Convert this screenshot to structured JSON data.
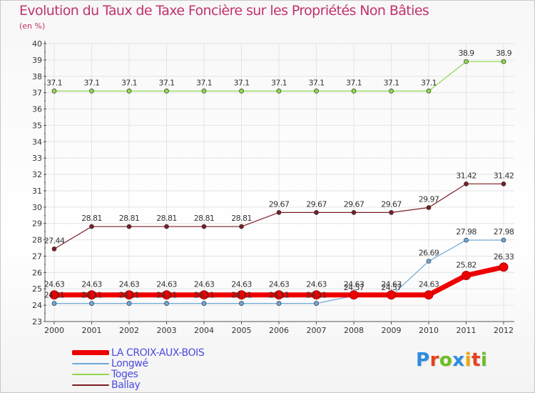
{
  "title": "Evolution du Taux de Taxe Foncière sur les Propriétés Non Bâties",
  "unit": "(en %)",
  "brand": {
    "text": "Proxiti",
    "letter_colors": [
      "#2c8de0",
      "#e8401c",
      "#6dbf20",
      "#2c8de0",
      "#f0a800",
      "#e8401c",
      "#6dbf20"
    ]
  },
  "colors": {
    "title": "#c0336b",
    "legend_text": "#4a4ae0",
    "axis": "#555555",
    "tick_accent": "#e04040",
    "grid": "#e4e4e4"
  },
  "chart_data": {
    "type": "line",
    "title": "Evolution du Taux de Taxe Foncière sur les Propriétés Non Bâties",
    "ylabel": "(en %)",
    "xlabel": "",
    "x": [
      "2000",
      "2001",
      "2002",
      "2003",
      "2004",
      "2005",
      "2006",
      "2007",
      "2008",
      "2009",
      "2010",
      "2011",
      "2012"
    ],
    "ylim": [
      23,
      40
    ],
    "yticks": [
      23,
      24,
      25,
      26,
      27,
      28,
      29,
      30,
      31,
      32,
      33,
      34,
      35,
      36,
      37,
      38,
      39,
      40
    ],
    "grid": true,
    "legend_position": "bottom-left",
    "series": [
      {
        "name": "Ballay",
        "color": "#7a1e24",
        "width": 1.2,
        "values": [
          27.44,
          28.81,
          28.81,
          28.81,
          28.81,
          28.81,
          29.67,
          29.67,
          29.67,
          29.67,
          29.97,
          31.42,
          31.42
        ],
        "labels": [
          "27.44",
          "28.81",
          "28.81",
          "28.81",
          "28.81",
          "28.81",
          "29.67",
          "29.67",
          "29.67",
          "29.67",
          "29.97",
          "31.42",
          "31.42"
        ]
      },
      {
        "name": "Toges",
        "color": "#8fd94c",
        "width": 1.2,
        "values": [
          37.1,
          37.1,
          37.1,
          37.1,
          37.1,
          37.1,
          37.1,
          37.1,
          37.1,
          37.1,
          37.1,
          38.9,
          38.9
        ],
        "labels": [
          "37.1",
          "37.1",
          "37.1",
          "37.1",
          "37.1",
          "37.1",
          "37.1",
          "37.1",
          "37.1",
          "37.1",
          "37.1",
          "38.9",
          "38.9"
        ]
      },
      {
        "name": "Longwé",
        "color": "#6fa8d8",
        "width": 1.2,
        "values": [
          24.11,
          24.11,
          24.11,
          24.11,
          24.11,
          24.11,
          24.11,
          24.11,
          24.57,
          24.57,
          26.69,
          27.98,
          27.98
        ],
        "labels": [
          "24.11",
          "24.11",
          "24.11",
          "24.11",
          "24.11",
          "24.11",
          "24.11",
          "24.11",
          "24.57",
          "24.57",
          "26.69",
          "27.98",
          "27.98"
        ]
      },
      {
        "name": "LA CROIX-AUX-BOIS",
        "color": "#ee0000",
        "width": 7,
        "values": [
          24.63,
          24.63,
          24.63,
          24.63,
          24.63,
          24.63,
          24.63,
          24.63,
          24.63,
          24.63,
          24.63,
          25.82,
          26.33
        ],
        "labels": [
          "24.63",
          "24.63",
          "24.63",
          "24.63",
          "24.63",
          "24.63",
          "24.63",
          "24.63",
          "24.63",
          "24.63",
          "24.63",
          "25.82",
          "26.33"
        ]
      }
    ],
    "legend_order": [
      "LA CROIX-AUX-BOIS",
      "Longwé",
      "Toges",
      "Ballay"
    ]
  }
}
